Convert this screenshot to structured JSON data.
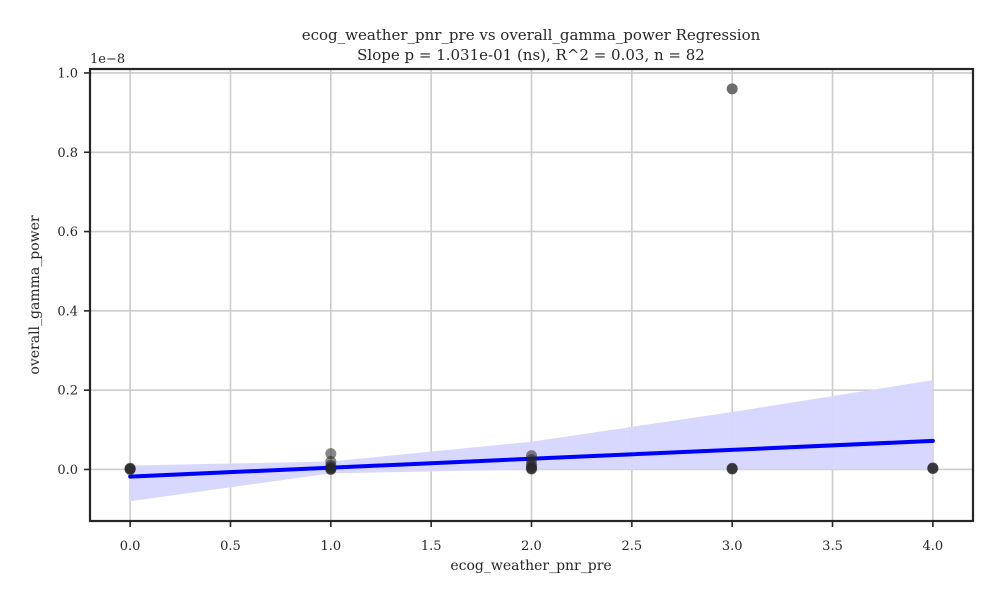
{
  "chart_data": {
    "type": "scatter",
    "title": "ecog_weather_pnr_pre vs overall_gamma_power Regression",
    "subtitle": "Slope p = 1.031e-01 (ns), R^2 = 0.03, n = 82",
    "xlabel": "ecog_weather_pnr_pre",
    "ylabel": "overall_gamma_power",
    "y_offset_label": "1e−8",
    "xlim": [
      -0.2,
      4.2
    ],
    "ylim": [
      -0.13,
      1.01
    ],
    "x_ticks": [
      0.0,
      0.5,
      1.0,
      1.5,
      2.0,
      2.5,
      3.0,
      3.5,
      4.0
    ],
    "x_tick_labels": [
      "0.0",
      "0.5",
      "1.0",
      "1.5",
      "2.0",
      "2.5",
      "3.0",
      "3.5",
      "4.0"
    ],
    "y_ticks": [
      0.0,
      0.2,
      0.4,
      0.6,
      0.8,
      1.0
    ],
    "y_tick_labels": [
      "0.0",
      "0.2",
      "0.4",
      "0.6",
      "0.8",
      "1.0"
    ],
    "grid": true,
    "legend": "none",
    "points": [
      {
        "x": 0,
        "y": 0.001
      },
      {
        "x": 0,
        "y": 0.002
      },
      {
        "x": 0,
        "y": 0.003
      },
      {
        "x": 0,
        "y": 0.0
      },
      {
        "x": 1,
        "y": 0.04
      },
      {
        "x": 1,
        "y": 0.02
      },
      {
        "x": 1,
        "y": 0.01
      },
      {
        "x": 1,
        "y": 0.005
      },
      {
        "x": 1,
        "y": 0.002
      },
      {
        "x": 1,
        "y": 0.001
      },
      {
        "x": 1,
        "y": 0.0
      },
      {
        "x": 2,
        "y": 0.035
      },
      {
        "x": 2,
        "y": 0.025
      },
      {
        "x": 2,
        "y": 0.015
      },
      {
        "x": 2,
        "y": 0.008
      },
      {
        "x": 2,
        "y": 0.004
      },
      {
        "x": 2,
        "y": 0.002
      },
      {
        "x": 2,
        "y": 0.001
      },
      {
        "x": 3,
        "y": 0.96
      },
      {
        "x": 3,
        "y": 0.003
      },
      {
        "x": 3,
        "y": 0.002
      },
      {
        "x": 3,
        "y": 0.001
      },
      {
        "x": 4,
        "y": 0.004
      },
      {
        "x": 4,
        "y": 0.003
      },
      {
        "x": 4,
        "y": 0.002
      }
    ],
    "regression_line": {
      "x": [
        0,
        4
      ],
      "y": [
        -0.018,
        0.072
      ]
    },
    "confidence_band": {
      "x": [
        0,
        1,
        2,
        3,
        4
      ],
      "upper": [
        0.01,
        0.02,
        0.07,
        0.145,
        0.225
      ],
      "lower": [
        -0.08,
        -0.01,
        0.0,
        0.0,
        0.0
      ]
    },
    "colors": {
      "line": "#0000ff",
      "band": "#d6d6ff",
      "points": "#262626",
      "outlier": "#6e6e6e"
    }
  }
}
